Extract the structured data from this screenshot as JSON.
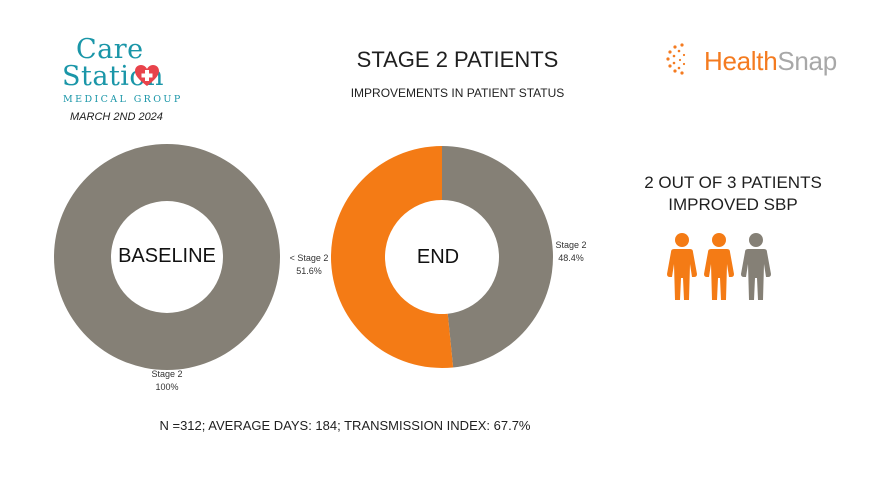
{
  "header": {
    "title": "STAGE 2 PATIENTS",
    "subtitle": "IMPROVEMENTS IN PATIENT STATUS",
    "date": "MARCH 2ND 2024"
  },
  "logos": {
    "care_station": {
      "line1": "Care",
      "line2": "Station",
      "tagline": "MEDICAL GROUP"
    },
    "healthsnap": {
      "part1": "Health",
      "part2": "Snap"
    }
  },
  "colors": {
    "stage2": "#858076",
    "below_stage2": "#f47b15",
    "brand_teal": "#1a96a8",
    "person_improved": "#f47b15",
    "person_not_improved": "#858076"
  },
  "chart_data": [
    {
      "type": "pie",
      "center_label": "BASELINE",
      "slices": [
        {
          "label": "Stage 2",
          "value": 100,
          "display": "100%"
        }
      ]
    },
    {
      "type": "pie",
      "center_label": "END",
      "slices": [
        {
          "label": "Stage 2",
          "value": 48.4,
          "display": "48.4%"
        },
        {
          "label": "< Stage 2",
          "value": 51.6,
          "display": "51.6%"
        }
      ]
    }
  ],
  "stat": {
    "line1": "2 OUT OF 3 PATIENTS",
    "line2": "IMPROVED SBP",
    "icons": [
      "person-improved-icon",
      "person-improved-icon",
      "person-not-improved-icon"
    ],
    "improved": 2,
    "total": 3
  },
  "footer": "N =312; AVERAGE DAYS: 184; TRANSMISSION INDEX: 67.7%"
}
